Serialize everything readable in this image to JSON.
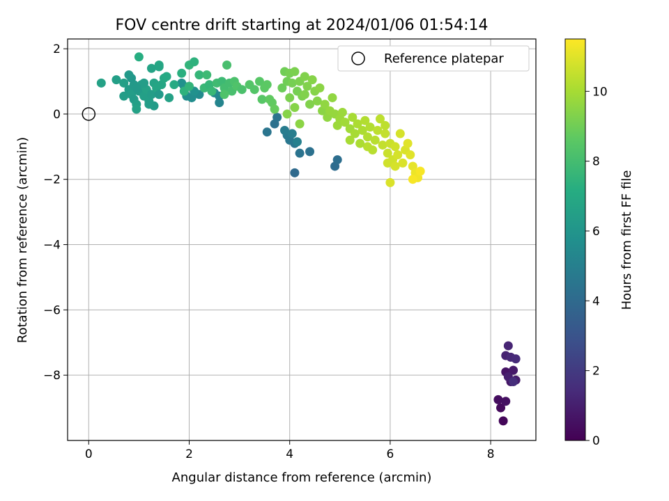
{
  "chart_data": {
    "type": "scatter",
    "title": "FOV centre drift starting at 2024/01/06 01:54:14",
    "xlabel": "Angular distance from reference (arcmin)",
    "ylabel": "Rotation from reference (arcmin)",
    "xlim": [
      -0.42,
      8.9
    ],
    "ylim": [
      -10.0,
      2.3
    ],
    "xticks": [
      0,
      2,
      4,
      6,
      8
    ],
    "xtick_labels": [
      "0",
      "2",
      "4",
      "6",
      "8"
    ],
    "yticks": [
      2,
      0,
      -2,
      -4,
      -6,
      -8
    ],
    "ytick_labels": [
      "2",
      "0",
      "−2",
      "−4",
      "−6",
      "−8"
    ],
    "grid": true,
    "legend": {
      "position": "top-right",
      "entries": [
        "Reference platepar"
      ]
    },
    "reference_point": {
      "x": 0,
      "y": 0
    },
    "colorbar": {
      "label": "Hours from first FF file",
      "range": [
        0,
        11.5
      ],
      "ticks": [
        0,
        2,
        4,
        6,
        8,
        10
      ],
      "tick_labels": [
        "0",
        "2",
        "4",
        "6",
        "8",
        "10"
      ],
      "colormap": "viridis"
    },
    "series": [
      {
        "points": [
          {
            "x": 8.25,
            "y": -9.4,
            "c": 0.2
          },
          {
            "x": 8.2,
            "y": -9.0,
            "c": 0.3
          },
          {
            "x": 8.15,
            "y": -8.75,
            "c": 0.4
          },
          {
            "x": 8.3,
            "y": -8.8,
            "c": 0.5
          },
          {
            "x": 8.3,
            "y": -7.9,
            "c": 0.6
          },
          {
            "x": 8.4,
            "y": -8.2,
            "c": 0.7
          },
          {
            "x": 8.45,
            "y": -7.85,
            "c": 0.8
          },
          {
            "x": 8.5,
            "y": -8.15,
            "c": 0.9
          },
          {
            "x": 8.35,
            "y": -8.05,
            "c": 1.0
          },
          {
            "x": 8.3,
            "y": -7.4,
            "c": 1.1
          },
          {
            "x": 8.35,
            "y": -7.1,
            "c": 1.2
          },
          {
            "x": 8.4,
            "y": -7.45,
            "c": 1.3
          },
          {
            "x": 8.5,
            "y": -7.5,
            "c": 1.4
          },
          {
            "x": 8.45,
            "y": -8.2,
            "c": 1.5
          },
          {
            "x": 4.1,
            "y": -1.8,
            "c": 4.0
          },
          {
            "x": 4.9,
            "y": -1.6,
            "c": 4.1
          },
          {
            "x": 4.95,
            "y": -1.4,
            "c": 4.2
          },
          {
            "x": 4.4,
            "y": -1.15,
            "c": 4.3
          },
          {
            "x": 4.2,
            "y": -1.2,
            "c": 4.4
          },
          {
            "x": 4.1,
            "y": -0.9,
            "c": 4.5
          },
          {
            "x": 4.0,
            "y": -0.8,
            "c": 4.6
          },
          {
            "x": 3.95,
            "y": -0.65,
            "c": 4.7
          },
          {
            "x": 3.9,
            "y": -0.5,
            "c": 4.8
          },
          {
            "x": 4.05,
            "y": -0.6,
            "c": 4.9
          },
          {
            "x": 4.15,
            "y": -0.85,
            "c": 5.0
          },
          {
            "x": 3.7,
            "y": -0.3,
            "c": 4.3
          },
          {
            "x": 3.75,
            "y": -0.1,
            "c": 4.4
          },
          {
            "x": 3.55,
            "y": -0.55,
            "c": 4.5
          },
          {
            "x": 2.6,
            "y": 0.35,
            "c": 5.2
          },
          {
            "x": 2.6,
            "y": 0.55,
            "c": 5.3
          },
          {
            "x": 2.5,
            "y": 0.65,
            "c": 5.4
          },
          {
            "x": 2.2,
            "y": 0.6,
            "c": 5.5
          },
          {
            "x": 2.05,
            "y": 0.5,
            "c": 5.6
          },
          {
            "x": 1.95,
            "y": 0.55,
            "c": 5.6
          },
          {
            "x": 1.9,
            "y": 0.85,
            "c": 5.7
          },
          {
            "x": 1.85,
            "y": 0.95,
            "c": 5.8
          },
          {
            "x": 2.1,
            "y": 0.7,
            "c": 5.8
          },
          {
            "x": 0.25,
            "y": 0.95,
            "c": 6.6
          },
          {
            "x": 0.55,
            "y": 1.05,
            "c": 6.5
          },
          {
            "x": 0.7,
            "y": 0.95,
            "c": 6.5
          },
          {
            "x": 0.7,
            "y": 0.55,
            "c": 6.4
          },
          {
            "x": 0.8,
            "y": 0.75,
            "c": 6.3
          },
          {
            "x": 0.85,
            "y": 0.6,
            "c": 6.4
          },
          {
            "x": 0.9,
            "y": 0.45,
            "c": 6.3
          },
          {
            "x": 0.95,
            "y": 0.3,
            "c": 6.5
          },
          {
            "x": 0.95,
            "y": 0.15,
            "c": 6.6
          },
          {
            "x": 0.9,
            "y": 0.9,
            "c": 6.2
          },
          {
            "x": 0.85,
            "y": 1.1,
            "c": 6.1
          },
          {
            "x": 0.8,
            "y": 1.2,
            "c": 6.2
          },
          {
            "x": 1.0,
            "y": 0.7,
            "c": 6.3
          },
          {
            "x": 1.05,
            "y": 0.9,
            "c": 6.4
          },
          {
            "x": 1.1,
            "y": 0.55,
            "c": 6.5
          },
          {
            "x": 1.15,
            "y": 0.75,
            "c": 6.6
          },
          {
            "x": 1.2,
            "y": 0.4,
            "c": 6.5
          },
          {
            "x": 1.25,
            "y": 0.6,
            "c": 6.4
          },
          {
            "x": 1.3,
            "y": 0.25,
            "c": 6.3
          },
          {
            "x": 1.3,
            "y": 0.95,
            "c": 6.7
          },
          {
            "x": 1.35,
            "y": 0.8,
            "c": 6.8
          },
          {
            "x": 1.4,
            "y": 0.6,
            "c": 6.2
          },
          {
            "x": 1.45,
            "y": 0.9,
            "c": 6.8
          },
          {
            "x": 1.5,
            "y": 1.1,
            "c": 6.9
          },
          {
            "x": 1.55,
            "y": 1.15,
            "c": 7.0
          },
          {
            "x": 1.4,
            "y": 1.5,
            "c": 6.9
          },
          {
            "x": 1.4,
            "y": 1.45,
            "c": 6.8
          },
          {
            "x": 1.25,
            "y": 1.4,
            "c": 6.7
          },
          {
            "x": 1.6,
            "y": 0.5,
            "c": 6.6
          },
          {
            "x": 1.1,
            "y": 0.95,
            "c": 6.4
          },
          {
            "x": 1.0,
            "y": 1.75,
            "c": 7.2
          },
          {
            "x": 0.95,
            "y": 0.8,
            "c": 6.2
          },
          {
            "x": 1.2,
            "y": 0.3,
            "c": 6.4
          },
          {
            "x": 1.7,
            "y": 0.9,
            "c": 7.0
          },
          {
            "x": 1.85,
            "y": 1.25,
            "c": 7.3
          },
          {
            "x": 1.9,
            "y": 0.7,
            "c": 7.4
          },
          {
            "x": 2.0,
            "y": 1.5,
            "c": 7.5
          },
          {
            "x": 2.1,
            "y": 1.6,
            "c": 7.4
          },
          {
            "x": 2.2,
            "y": 1.2,
            "c": 7.6
          },
          {
            "x": 2.0,
            "y": 0.85,
            "c": 7.5
          },
          {
            "x": 2.3,
            "y": 0.8,
            "c": 7.7
          },
          {
            "x": 2.35,
            "y": 1.2,
            "c": 7.8
          },
          {
            "x": 2.4,
            "y": 0.9,
            "c": 7.6
          },
          {
            "x": 2.45,
            "y": 0.7,
            "c": 7.7
          },
          {
            "x": 2.55,
            "y": 0.95,
            "c": 7.9
          },
          {
            "x": 2.65,
            "y": 1.0,
            "c": 7.8
          },
          {
            "x": 2.7,
            "y": 0.8,
            "c": 8.0
          },
          {
            "x": 2.75,
            "y": 1.5,
            "c": 8.1
          },
          {
            "x": 2.8,
            "y": 0.95,
            "c": 8.0
          },
          {
            "x": 2.85,
            "y": 0.7,
            "c": 8.1
          },
          {
            "x": 2.9,
            "y": 1.0,
            "c": 8.2
          },
          {
            "x": 2.95,
            "y": 0.85,
            "c": 8.3
          },
          {
            "x": 3.05,
            "y": 0.75,
            "c": 8.2
          },
          {
            "x": 2.7,
            "y": 0.6,
            "c": 8.3
          },
          {
            "x": 3.2,
            "y": 0.9,
            "c": 8.4
          },
          {
            "x": 3.3,
            "y": 0.75,
            "c": 8.4
          },
          {
            "x": 3.4,
            "y": 1.0,
            "c": 8.5
          },
          {
            "x": 3.45,
            "y": 0.45,
            "c": 8.5
          },
          {
            "x": 3.5,
            "y": 0.8,
            "c": 8.6
          },
          {
            "x": 3.55,
            "y": 0.9,
            "c": 8.6
          },
          {
            "x": 3.6,
            "y": 0.45,
            "c": 8.7
          },
          {
            "x": 3.65,
            "y": 0.35,
            "c": 8.7
          },
          {
            "x": 3.7,
            "y": 0.15,
            "c": 8.8
          },
          {
            "x": 3.85,
            "y": 0.8,
            "c": 8.9
          },
          {
            "x": 3.9,
            "y": 1.3,
            "c": 9.0
          },
          {
            "x": 3.95,
            "y": 1.0,
            "c": 9.0
          },
          {
            "x": 4.0,
            "y": 1.25,
            "c": 9.1
          },
          {
            "x": 4.05,
            "y": 0.95,
            "c": 9.1
          },
          {
            "x": 4.1,
            "y": 1.3,
            "c": 9.2
          },
          {
            "x": 4.15,
            "y": 0.7,
            "c": 9.1
          },
          {
            "x": 4.2,
            "y": 1.0,
            "c": 9.2
          },
          {
            "x": 4.25,
            "y": 0.55,
            "c": 9.2
          },
          {
            "x": 4.3,
            "y": 1.15,
            "c": 9.3
          },
          {
            "x": 4.35,
            "y": 0.85,
            "c": 9.3
          },
          {
            "x": 4.4,
            "y": 0.3,
            "c": 9.3
          },
          {
            "x": 4.45,
            "y": 1.05,
            "c": 9.4
          },
          {
            "x": 4.5,
            "y": 0.7,
            "c": 9.4
          },
          {
            "x": 4.55,
            "y": 0.4,
            "c": 9.4
          },
          {
            "x": 4.6,
            "y": 0.8,
            "c": 9.5
          },
          {
            "x": 4.65,
            "y": 0.1,
            "c": 9.5
          },
          {
            "x": 3.95,
            "y": 0.0,
            "c": 9.4
          },
          {
            "x": 4.2,
            "y": -0.3,
            "c": 9.5
          },
          {
            "x": 4.1,
            "y": 0.2,
            "c": 9.4
          },
          {
            "x": 4.3,
            "y": 0.6,
            "c": 9.3
          },
          {
            "x": 4.0,
            "y": 0.5,
            "c": 9.2
          },
          {
            "x": 4.7,
            "y": 0.3,
            "c": 9.6
          },
          {
            "x": 4.75,
            "y": -0.1,
            "c": 9.6
          },
          {
            "x": 4.8,
            "y": 0.1,
            "c": 9.7
          },
          {
            "x": 4.85,
            "y": 0.5,
            "c": 9.6
          },
          {
            "x": 4.9,
            "y": 0.0,
            "c": 9.7
          },
          {
            "x": 4.95,
            "y": -0.35,
            "c": 9.8
          },
          {
            "x": 5.0,
            "y": -0.15,
            "c": 9.8
          },
          {
            "x": 5.05,
            "y": 0.05,
            "c": 9.8
          },
          {
            "x": 5.1,
            "y": -0.25,
            "c": 9.9
          },
          {
            "x": 5.2,
            "y": -0.45,
            "c": 9.9
          },
          {
            "x": 5.25,
            "y": -0.1,
            "c": 10.0
          },
          {
            "x": 5.3,
            "y": -0.6,
            "c": 10.0
          },
          {
            "x": 5.35,
            "y": -0.3,
            "c": 10.1
          },
          {
            "x": 5.45,
            "y": -0.5,
            "c": 10.1
          },
          {
            "x": 5.5,
            "y": -0.2,
            "c": 10.2
          },
          {
            "x": 5.55,
            "y": -0.7,
            "c": 10.2
          },
          {
            "x": 5.6,
            "y": -0.4,
            "c": 10.2
          },
          {
            "x": 5.65,
            "y": -1.1,
            "c": 10.3
          },
          {
            "x": 5.7,
            "y": -0.8,
            "c": 10.3
          },
          {
            "x": 5.75,
            "y": -0.5,
            "c": 10.4
          },
          {
            "x": 5.8,
            "y": -0.15,
            "c": 10.4
          },
          {
            "x": 5.85,
            "y": -0.95,
            "c": 10.5
          },
          {
            "x": 5.9,
            "y": -0.6,
            "c": 10.5
          },
          {
            "x": 5.95,
            "y": -1.2,
            "c": 10.6
          },
          {
            "x": 6.0,
            "y": -0.9,
            "c": 10.6
          },
          {
            "x": 6.05,
            "y": -1.4,
            "c": 10.7
          },
          {
            "x": 6.1,
            "y": -1.0,
            "c": 10.7
          },
          {
            "x": 6.15,
            "y": -1.25,
            "c": 10.8
          },
          {
            "x": 6.2,
            "y": -0.6,
            "c": 10.8
          },
          {
            "x": 6.25,
            "y": -1.5,
            "c": 10.9
          },
          {
            "x": 6.3,
            "y": -1.1,
            "c": 10.9
          },
          {
            "x": 6.35,
            "y": -0.9,
            "c": 11.0
          },
          {
            "x": 6.4,
            "y": -1.25,
            "c": 11.0
          },
          {
            "x": 6.45,
            "y": -1.6,
            "c": 11.1
          },
          {
            "x": 6.5,
            "y": -1.8,
            "c": 11.2
          },
          {
            "x": 6.55,
            "y": -1.95,
            "c": 11.3
          },
          {
            "x": 6.6,
            "y": -1.75,
            "c": 11.4
          },
          {
            "x": 6.45,
            "y": -2.0,
            "c": 11.4
          },
          {
            "x": 6.0,
            "y": -2.1,
            "c": 10.9
          },
          {
            "x": 5.95,
            "y": -1.5,
            "c": 10.7
          },
          {
            "x": 6.1,
            "y": -1.6,
            "c": 10.8
          },
          {
            "x": 5.55,
            "y": -1.0,
            "c": 10.3
          },
          {
            "x": 5.9,
            "y": -0.35,
            "c": 10.4
          },
          {
            "x": 5.4,
            "y": -0.9,
            "c": 10.1
          },
          {
            "x": 5.2,
            "y": -0.8,
            "c": 10.0
          }
        ]
      }
    ]
  }
}
